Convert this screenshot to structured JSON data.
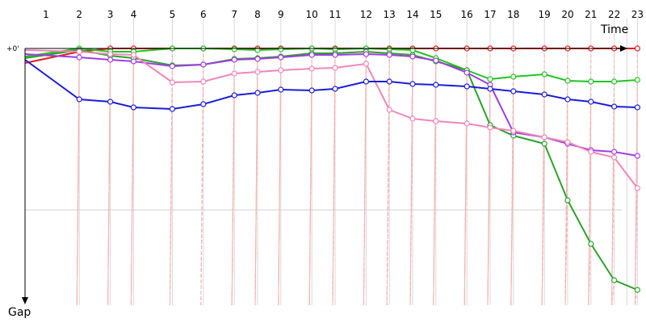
{
  "chart_data": {
    "type": "line",
    "x_axis_label": "Time",
    "y_axis_label": "Gap",
    "zero_label": "+0'",
    "laps": [
      "1",
      "2",
      "3",
      "4",
      "5",
      "6",
      "7",
      "8",
      "9",
      "10",
      "11",
      "12",
      "13",
      "14",
      "15",
      "16",
      "17",
      "18",
      "19",
      "20",
      "21",
      "22",
      "23"
    ],
    "gridlines": {
      "vertical": true,
      "horizontal_reference": 200
    },
    "series": [
      {
        "color": "#e41a1c",
        "points": [
          [
            0,
            18
          ],
          [
            7,
            4
          ],
          [
            11,
            0
          ],
          [
            14,
            0
          ],
          [
            19,
            0
          ],
          [
            23,
            0
          ],
          [
            27,
            0
          ],
          [
            30,
            0
          ],
          [
            33,
            0
          ],
          [
            37,
            0
          ],
          [
            40,
            0
          ],
          [
            44,
            0
          ],
          [
            47,
            0
          ],
          [
            50,
            0
          ],
          [
            53,
            0
          ],
          [
            57,
            0
          ],
          [
            60,
            0
          ],
          [
            63,
            0
          ],
          [
            67,
            0
          ],
          [
            70,
            0
          ],
          [
            73,
            0
          ],
          [
            76,
            0
          ],
          [
            79,
            0
          ]
        ]
      },
      {
        "color": "#22c322",
        "points": [
          [
            0,
            10
          ],
          [
            7,
            0
          ],
          [
            11,
            4
          ],
          [
            14,
            4
          ],
          [
            19,
            0
          ],
          [
            23,
            0
          ],
          [
            27,
            1
          ],
          [
            30,
            2
          ],
          [
            33,
            1
          ],
          [
            37,
            0
          ],
          [
            40,
            1
          ],
          [
            44,
            0
          ],
          [
            47,
            1
          ],
          [
            50,
            2
          ],
          [
            53,
            12
          ],
          [
            57,
            27
          ],
          [
            60,
            38
          ],
          [
            63,
            35
          ],
          [
            67,
            32
          ],
          [
            70,
            40
          ],
          [
            73,
            41
          ],
          [
            76,
            41
          ],
          [
            79,
            39
          ]
        ]
      },
      {
        "color": "#2ca02c",
        "points": [
          [
            0,
            12
          ],
          [
            7,
            2
          ],
          [
            11,
            9
          ],
          [
            14,
            12
          ],
          [
            19,
            21
          ],
          [
            23,
            20
          ],
          [
            27,
            13
          ],
          [
            30,
            12
          ],
          [
            33,
            10
          ],
          [
            37,
            6
          ],
          [
            40,
            6
          ],
          [
            44,
            4
          ],
          [
            47,
            6
          ],
          [
            50,
            8
          ],
          [
            53,
            16
          ],
          [
            57,
            27
          ],
          [
            60,
            95
          ],
          [
            63,
            108
          ],
          [
            67,
            118
          ],
          [
            70,
            188
          ],
          [
            73,
            242
          ],
          [
            76,
            287
          ],
          [
            79,
            299
          ]
        ]
      },
      {
        "color": "#a03ce4",
        "points": [
          [
            0,
            7
          ],
          [
            7,
            11
          ],
          [
            11,
            14
          ],
          [
            14,
            16
          ],
          [
            19,
            22
          ],
          [
            23,
            20
          ],
          [
            27,
            14
          ],
          [
            30,
            13
          ],
          [
            33,
            11
          ],
          [
            37,
            8
          ],
          [
            40,
            8
          ],
          [
            44,
            7
          ],
          [
            47,
            8
          ],
          [
            50,
            10
          ],
          [
            53,
            15
          ],
          [
            57,
            30
          ],
          [
            60,
            45
          ],
          [
            63,
            104
          ],
          [
            67,
            110
          ],
          [
            70,
            118
          ],
          [
            73,
            126
          ],
          [
            76,
            128
          ],
          [
            79,
            133
          ]
        ]
      },
      {
        "color": "#ef87b8",
        "points": [
          [
            0,
            2
          ],
          [
            7,
            4
          ],
          [
            11,
            7
          ],
          [
            14,
            8
          ],
          [
            19,
            42
          ],
          [
            23,
            41
          ],
          [
            27,
            31
          ],
          [
            30,
            29
          ],
          [
            33,
            27
          ],
          [
            37,
            25
          ],
          [
            40,
            24
          ],
          [
            44,
            19
          ],
          [
            47,
            76
          ],
          [
            50,
            87
          ],
          [
            53,
            90
          ],
          [
            57,
            93
          ],
          [
            60,
            98
          ],
          [
            63,
            102
          ],
          [
            67,
            110
          ],
          [
            70,
            116
          ],
          [
            73,
            128
          ],
          [
            76,
            135
          ],
          [
            79,
            173
          ]
        ]
      },
      {
        "color": "#1c1cd8",
        "points": [
          [
            0,
            14
          ],
          [
            7,
            63
          ],
          [
            11,
            66
          ],
          [
            14,
            73
          ],
          [
            19,
            75
          ],
          [
            23,
            69
          ],
          [
            27,
            58
          ],
          [
            30,
            55
          ],
          [
            33,
            51
          ],
          [
            37,
            52
          ],
          [
            40,
            50
          ],
          [
            44,
            41
          ],
          [
            47,
            41
          ],
          [
            50,
            44
          ],
          [
            53,
            45
          ],
          [
            57,
            47
          ],
          [
            60,
            50
          ],
          [
            63,
            53
          ],
          [
            67,
            57
          ],
          [
            70,
            63
          ],
          [
            73,
            66
          ],
          [
            76,
            72
          ],
          [
            79,
            73
          ]
        ]
      }
    ]
  }
}
